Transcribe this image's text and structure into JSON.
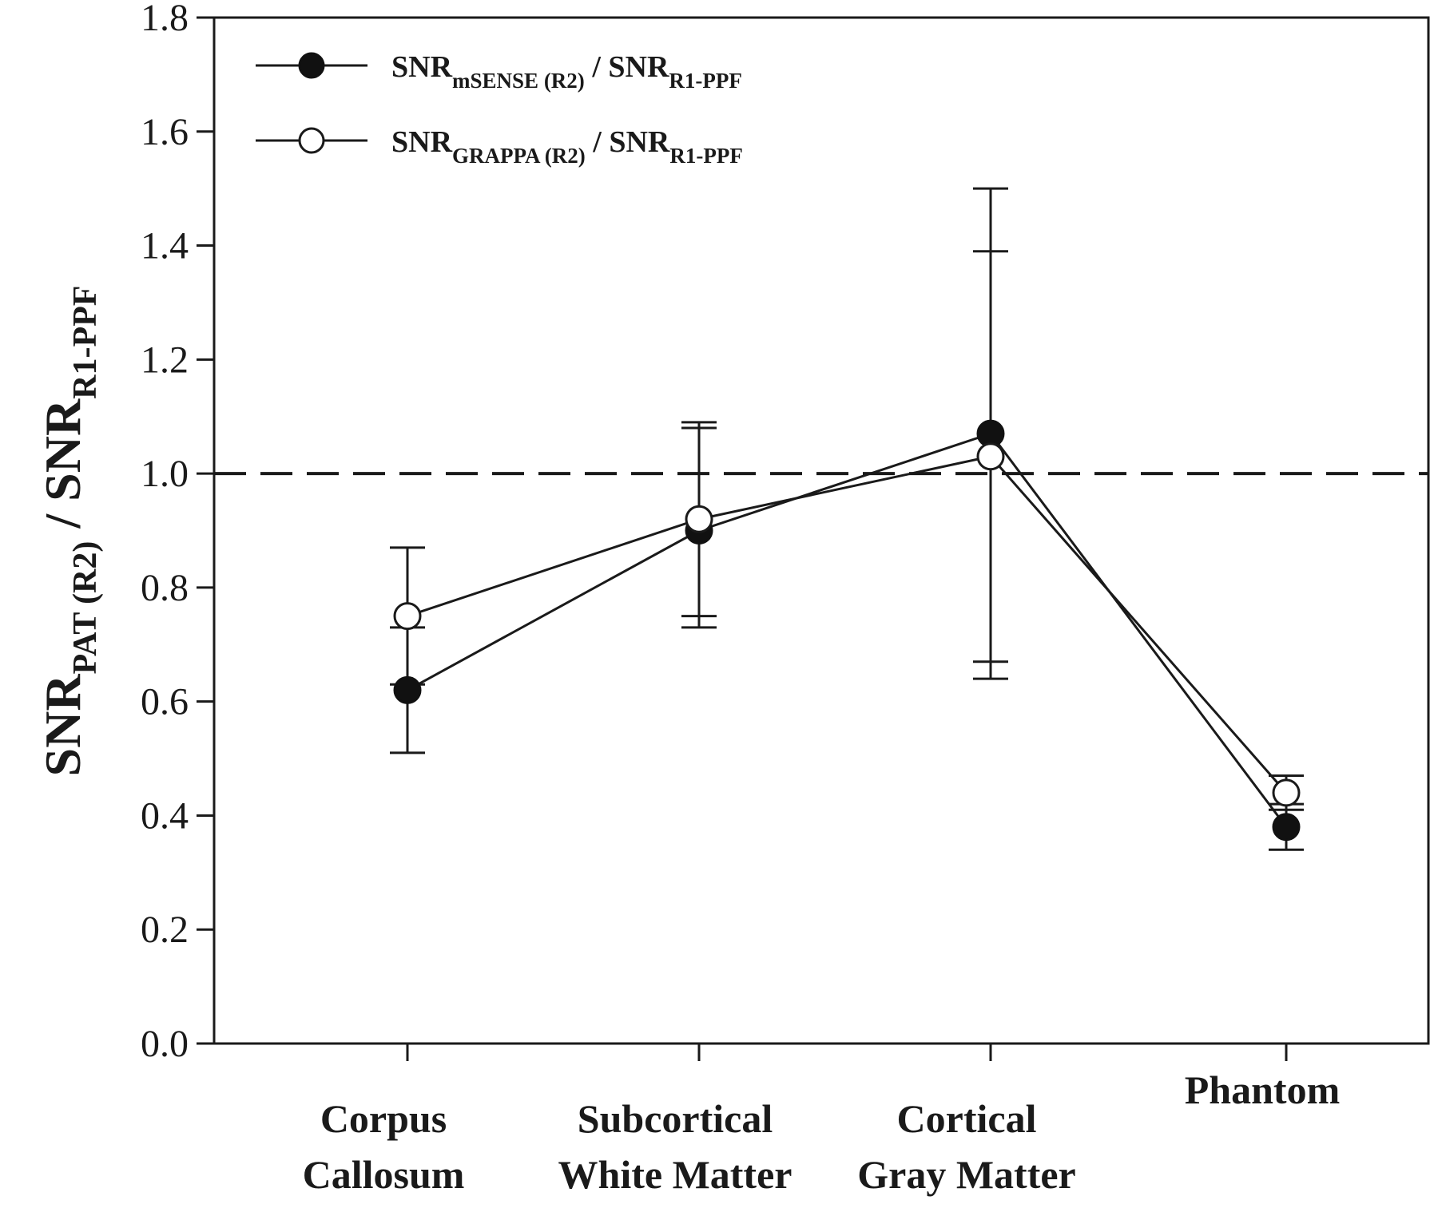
{
  "chart_data": {
    "type": "line",
    "title": "",
    "categories": [
      [
        "Corpus",
        "Callosum"
      ],
      [
        "Subcortical",
        "White Matter"
      ],
      [
        "Cortical",
        "Gray Matter"
      ],
      [
        "Phantom"
      ]
    ],
    "ylabel": {
      "main": "SNR",
      "sub": "PAT (R2)",
      "sep": " / ",
      "main2": "SNR",
      "sub2": "R1-PPF"
    },
    "ylim": [
      0.0,
      1.8
    ],
    "yticks": [
      "0.0",
      "0.2",
      "0.4",
      "0.6",
      "0.8",
      "1.0",
      "1.2",
      "1.4",
      "1.6",
      "1.8"
    ],
    "reference_line": {
      "y": 1.0,
      "style": "dashed"
    },
    "legend_position": "top-left",
    "grid": false,
    "series": [
      {
        "name": {
          "main": "SNR",
          "sub": "mSENSE (R2)",
          "sep": " / ",
          "main2": "SNR",
          "sub2": "R1-PPF"
        },
        "marker": "filled-circle",
        "values": [
          0.62,
          0.9,
          1.07,
          0.38
        ],
        "err_low": [
          0.51,
          0.75,
          0.64,
          0.34
        ],
        "err_high": [
          0.73,
          1.08,
          1.5,
          0.42
        ]
      },
      {
        "name": {
          "main": "SNR",
          "sub": "GRAPPA (R2)",
          "sep": " / ",
          "main2": "SNR",
          "sub2": "R1-PPF"
        },
        "marker": "open-circle",
        "values": [
          0.75,
          0.92,
          1.03,
          0.44
        ],
        "err_low": [
          0.63,
          0.73,
          0.67,
          0.41
        ],
        "err_high": [
          0.87,
          1.09,
          1.39,
          0.47
        ]
      }
    ],
    "colors": {
      "line": "#1a1a1a",
      "open_fill": "#ffffff",
      "filled_fill": "#111111"
    }
  }
}
